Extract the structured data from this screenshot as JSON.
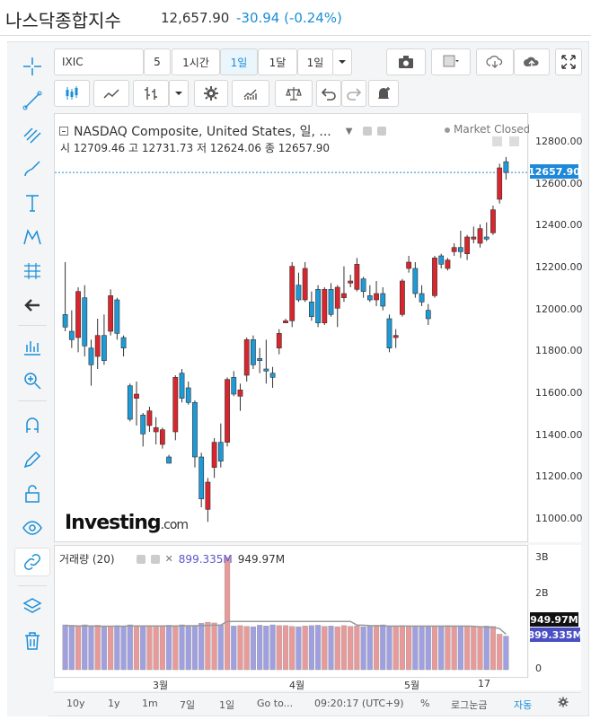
{
  "header": {
    "title": "나스닥종합지수",
    "price": "12,657.90",
    "change": "-30.94 (-0.24%)"
  },
  "toolbar": {
    "symbol": "IXIC",
    "intervals": [
      "5",
      "1시간",
      "1일",
      "1달",
      "1일"
    ],
    "active_interval": "1일"
  },
  "legend": {
    "title": "NASDAQ Composite, United States, 일, ...",
    "market_status": "Market Closed",
    "ohlc": [
      {
        "label": "시",
        "value": "12709.46"
      },
      {
        "label": "고",
        "value": "12731.73"
      },
      {
        "label": "저",
        "value": "12624.06"
      },
      {
        "label": "종",
        "value": "12657.90"
      }
    ],
    "volume_label": "거래량 (20)",
    "volume_values": [
      "899.335M",
      "949.97M"
    ]
  },
  "watermark": {
    "brand": "Investing",
    "suffix": ".com"
  },
  "price_axis": {
    "ticks": [
      "12800.00",
      "12600.00",
      "12400.00",
      "12200.00",
      "12000.00",
      "11800.00",
      "11600.00",
      "11400.00",
      "11200.00",
      "11000.00"
    ],
    "last_price": "12657.90"
  },
  "volume_axis": {
    "ticks": [
      "3B",
      "2B",
      "1B",
      "0"
    ],
    "tag_ma": "949.97M",
    "tag_vol": "899.335M"
  },
  "time_axis": {
    "ticks": [
      "3월",
      "4월",
      "5월",
      "17"
    ]
  },
  "bottom_bar": {
    "items": [
      "10y",
      "1y",
      "1m",
      "7일",
      "1일",
      "Go to...",
      "09:20:17 (UTC+9)",
      "%",
      "로그눈금",
      "자동"
    ]
  },
  "colors": {
    "up": "#d9262e",
    "down": "#1e9ad6",
    "vol_up": "#e89a9a",
    "vol_down": "#a09fe0",
    "accent": "#1a8ed8"
  },
  "chart_data": {
    "type": "candlestick",
    "y_range": [
      10900,
      12950
    ],
    "candles": [
      {
        "o": 11980,
        "h": 12230,
        "l": 11900,
        "c": 11920
      },
      {
        "o": 11900,
        "h": 12000,
        "l": 11820,
        "c": 11860
      },
      {
        "o": 11870,
        "h": 12110,
        "l": 11800,
        "c": 12090
      },
      {
        "o": 12060,
        "h": 12120,
        "l": 11780,
        "c": 11830
      },
      {
        "o": 11820,
        "h": 11860,
        "l": 11640,
        "c": 11740
      },
      {
        "o": 11780,
        "h": 11960,
        "l": 11720,
        "c": 11880
      },
      {
        "o": 11880,
        "h": 11980,
        "l": 11740,
        "c": 11760
      },
      {
        "o": 11900,
        "h": 12100,
        "l": 11880,
        "c": 12070
      },
      {
        "o": 12050,
        "h": 12060,
        "l": 11860,
        "c": 11890
      },
      {
        "o": 11870,
        "h": 11880,
        "l": 11780,
        "c": 11820
      },
      {
        "o": 11640,
        "h": 11650,
        "l": 11470,
        "c": 11480
      },
      {
        "o": 11580,
        "h": 11660,
        "l": 11450,
        "c": 11600
      },
      {
        "o": 11500,
        "h": 11510,
        "l": 11350,
        "c": 11410
      },
      {
        "o": 11450,
        "h": 11540,
        "l": 11420,
        "c": 11520
      },
      {
        "o": 11420,
        "h": 11490,
        "l": 11360,
        "c": 11440
      },
      {
        "o": 11360,
        "h": 11440,
        "l": 11340,
        "c": 11430
      },
      {
        "o": 11300,
        "h": 11310,
        "l": 11270,
        "c": 11270
      },
      {
        "o": 11420,
        "h": 11690,
        "l": 11380,
        "c": 11680
      },
      {
        "o": 11700,
        "h": 11720,
        "l": 11560,
        "c": 11580
      },
      {
        "o": 11630,
        "h": 11660,
        "l": 11550,
        "c": 11560
      },
      {
        "o": 11560,
        "h": 11570,
        "l": 11250,
        "c": 11300
      },
      {
        "o": 11300,
        "h": 11320,
        "l": 11060,
        "c": 11100
      },
      {
        "o": 11050,
        "h": 11200,
        "l": 10990,
        "c": 11180
      },
      {
        "o": 11250,
        "h": 11390,
        "l": 11200,
        "c": 11370
      },
      {
        "o": 11370,
        "h": 11460,
        "l": 11250,
        "c": 11280
      },
      {
        "o": 11370,
        "h": 11680,
        "l": 11350,
        "c": 11670
      },
      {
        "o": 11680,
        "h": 11710,
        "l": 11590,
        "c": 11600
      },
      {
        "o": 11590,
        "h": 11650,
        "l": 11520,
        "c": 11620
      },
      {
        "o": 11690,
        "h": 11870,
        "l": 11660,
        "c": 11860
      },
      {
        "o": 11860,
        "h": 11880,
        "l": 11720,
        "c": 11740
      },
      {
        "o": 11770,
        "h": 11820,
        "l": 11700,
        "c": 11760
      },
      {
        "o": 11720,
        "h": 11860,
        "l": 11650,
        "c": 11710
      },
      {
        "o": 11700,
        "h": 11730,
        "l": 11630,
        "c": 11680
      },
      {
        "o": 11820,
        "h": 11910,
        "l": 11790,
        "c": 11890
      },
      {
        "o": 11940,
        "h": 11960,
        "l": 11940,
        "c": 11950
      },
      {
        "o": 11950,
        "h": 12230,
        "l": 11920,
        "c": 12210
      },
      {
        "o": 12120,
        "h": 12180,
        "l": 12040,
        "c": 12050
      },
      {
        "o": 12050,
        "h": 12230,
        "l": 12040,
        "c": 12200
      },
      {
        "o": 12040,
        "h": 12090,
        "l": 11950,
        "c": 11970
      },
      {
        "o": 12100,
        "h": 12120,
        "l": 11920,
        "c": 11940
      },
      {
        "o": 11940,
        "h": 12110,
        "l": 11930,
        "c": 12100
      },
      {
        "o": 12100,
        "h": 12130,
        "l": 11970,
        "c": 11980
      },
      {
        "o": 12010,
        "h": 12120,
        "l": 11920,
        "c": 12110
      },
      {
        "o": 12060,
        "h": 12210,
        "l": 12040,
        "c": 12080
      },
      {
        "o": 12130,
        "h": 12170,
        "l": 12110,
        "c": 12140
      },
      {
        "o": 12100,
        "h": 12250,
        "l": 12090,
        "c": 12220
      },
      {
        "o": 12150,
        "h": 12160,
        "l": 12060,
        "c": 12090
      },
      {
        "o": 12070,
        "h": 12120,
        "l": 12040,
        "c": 12050
      },
      {
        "o": 12050,
        "h": 12140,
        "l": 12020,
        "c": 12080
      },
      {
        "o": 12080,
        "h": 12110,
        "l": 12000,
        "c": 12020
      },
      {
        "o": 11960,
        "h": 11980,
        "l": 11800,
        "c": 11820
      },
      {
        "o": 11870,
        "h": 11910,
        "l": 11820,
        "c": 11880
      },
      {
        "o": 11980,
        "h": 12150,
        "l": 11970,
        "c": 12140
      },
      {
        "o": 12200,
        "h": 12260,
        "l": 12180,
        "c": 12230
      },
      {
        "o": 12200,
        "h": 12230,
        "l": 12060,
        "c": 12080
      },
      {
        "o": 12080,
        "h": 12120,
        "l": 12020,
        "c": 12040
      },
      {
        "o": 12000,
        "h": 12030,
        "l": 11930,
        "c": 11960
      },
      {
        "o": 12070,
        "h": 12260,
        "l": 12060,
        "c": 12250
      },
      {
        "o": 12260,
        "h": 12270,
        "l": 12200,
        "c": 12220
      },
      {
        "o": 12200,
        "h": 12250,
        "l": 12190,
        "c": 12240
      },
      {
        "o": 12280,
        "h": 12320,
        "l": 12260,
        "c": 12300
      },
      {
        "o": 12300,
        "h": 12380,
        "l": 12250,
        "c": 12280
      },
      {
        "o": 12270,
        "h": 12360,
        "l": 12240,
        "c": 12350
      },
      {
        "o": 12340,
        "h": 12400,
        "l": 12320,
        "c": 12350
      },
      {
        "o": 12320,
        "h": 12410,
        "l": 12300,
        "c": 12390
      },
      {
        "o": 12350,
        "h": 12420,
        "l": 12330,
        "c": 12340
      },
      {
        "o": 12370,
        "h": 12500,
        "l": 12360,
        "c": 12480
      },
      {
        "o": 12530,
        "h": 12700,
        "l": 12510,
        "c": 12680
      },
      {
        "o": 12709.46,
        "h": 12731.73,
        "l": 12624.06,
        "c": 12657.9
      }
    ],
    "volume_range": [
      0,
      3000000000
    ],
    "volumes": [
      1200,
      1180,
      1170,
      1200,
      1150,
      1190,
      1160,
      1170,
      1180,
      1160,
      1200,
      1170,
      1150,
      1180,
      1170,
      1170,
      1190,
      1150,
      1200,
      1180,
      1160,
      1240,
      1270,
      1250,
      1200,
      3000,
      1170,
      1180,
      1160,
      1150,
      1190,
      1170,
      1200,
      1180,
      1180,
      1160,
      1150,
      1170,
      1180,
      1190,
      1160,
      1170,
      1150,
      1180,
      1160,
      1170,
      1150,
      1160,
      1190,
      1200,
      1170,
      1170,
      1180,
      1150,
      1160,
      1160,
      1170,
      1160,
      1170,
      1180,
      1150,
      1170,
      1160,
      1160,
      1150,
      1170,
      1160,
      949.97,
      899.335
    ],
    "volume_units": "M",
    "volume_ma": [
      1180,
      1180,
      1170,
      1170,
      1170,
      1165,
      1165,
      1165,
      1165,
      1165,
      1170,
      1170,
      1170,
      1170,
      1170,
      1170,
      1170,
      1170,
      1175,
      1175,
      1175,
      1180,
      1185,
      1190,
      1195,
      1290,
      1290,
      1290,
      1290,
      1290,
      1290,
      1290,
      1290,
      1290,
      1290,
      1290,
      1290,
      1290,
      1290,
      1290,
      1290,
      1290,
      1290,
      1290,
      1290,
      1195,
      1190,
      1180,
      1175,
      1170,
      1168,
      1168,
      1166,
      1166,
      1166,
      1166,
      1166,
      1166,
      1166,
      1166,
      1166,
      1166,
      1166,
      1160,
      1150,
      1140,
      1130,
      1100,
      949.97
    ]
  }
}
